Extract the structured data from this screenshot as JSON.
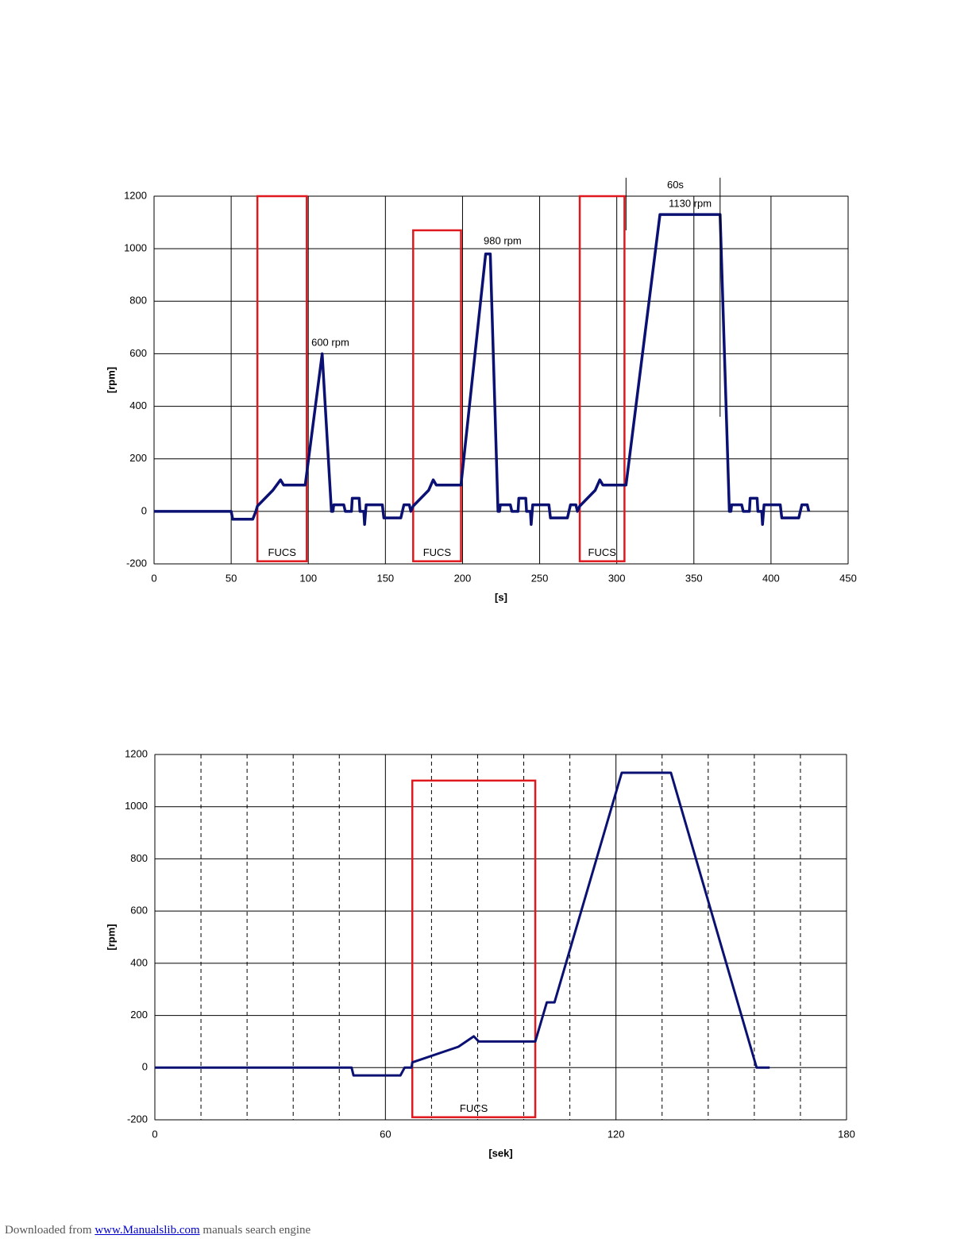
{
  "chart_data": [
    {
      "type": "line",
      "xlabel": "[s]",
      "ylabel": "[rpm]",
      "xlim": [
        0,
        450
      ],
      "xticks": [
        0,
        50,
        100,
        150,
        200,
        250,
        300,
        350,
        400,
        450
      ],
      "ylim": [
        -200,
        1200
      ],
      "yticks": [
        -200,
        0,
        200,
        400,
        600,
        800,
        1000,
        1200
      ],
      "grid": true,
      "color": "#0a1172",
      "x": [
        0,
        50,
        51,
        64,
        66,
        67,
        77,
        82,
        84,
        98,
        109,
        115,
        116,
        116.5,
        123,
        124,
        128,
        128.5,
        133,
        133.5,
        136,
        136.5,
        137.5,
        148,
        149,
        160,
        161,
        162,
        165.5,
        166.5,
        168,
        178,
        181,
        183,
        199,
        215,
        218,
        223,
        224,
        224.5,
        231,
        232,
        236,
        236.5,
        241,
        241.5,
        244,
        244.5,
        245.5,
        256,
        257,
        268,
        269,
        270,
        273.5,
        274.5,
        276,
        286,
        289,
        291,
        306,
        328,
        367,
        373,
        374,
        374.5,
        381,
        382,
        386,
        386.5,
        391,
        391.5,
        394,
        394.5,
        395.5,
        406,
        407,
        418,
        419,
        420,
        423.5,
        424.5
      ],
      "values": [
        0,
        0,
        -30,
        -30,
        0,
        20,
        80,
        120,
        100,
        100,
        600,
        0,
        0,
        25,
        25,
        0,
        0,
        50,
        50,
        0,
        0,
        -50,
        25,
        25,
        -25,
        -25,
        0,
        25,
        25,
        0,
        20,
        80,
        120,
        100,
        100,
        980,
        980,
        0,
        0,
        25,
        25,
        0,
        0,
        50,
        50,
        0,
        0,
        -50,
        25,
        25,
        -25,
        -25,
        0,
        25,
        25,
        0,
        20,
        80,
        120,
        100,
        100,
        1130,
        1130,
        0,
        0,
        25,
        25,
        0,
        0,
        50,
        50,
        0,
        0,
        -50,
        25,
        25,
        -25,
        -25,
        0,
        25,
        25,
        0
      ],
      "regions": [
        {
          "x": [
            67,
            99
          ],
          "y": [
            -190,
            1200
          ],
          "label": "FUCS"
        },
        {
          "x": [
            168,
            199
          ],
          "y": [
            -190,
            1070
          ],
          "label": "FUCS"
        },
        {
          "x": [
            276,
            305
          ],
          "y": [
            -190,
            1200
          ],
          "label": "FUCS"
        }
      ],
      "annotations": [
        {
          "text": "600 rpm",
          "x": 102,
          "y": 641
        },
        {
          "text": "980 rpm",
          "x": 213.7,
          "y": 1028
        },
        {
          "text": "1130 rpm",
          "x": 333.7,
          "y": 1170
        },
        {
          "text": "60s",
          "x": 332.6,
          "y": 1240,
          "span": [
            306,
            367
          ]
        }
      ]
    },
    {
      "type": "line",
      "xlabel": "[sek]",
      "ylabel": "[rpm]",
      "xlim": [
        0,
        180
      ],
      "xticks": [
        0,
        60,
        120,
        180
      ],
      "xminor": [
        12,
        24,
        36,
        48,
        72,
        84,
        96,
        108,
        132,
        144,
        156,
        168
      ],
      "ylim": [
        -200,
        1200
      ],
      "yticks": [
        -200,
        0,
        200,
        400,
        600,
        800,
        1000,
        1200
      ],
      "grid": true,
      "color": "#0a1172",
      "x": [
        0,
        51.2,
        51.7,
        63.9,
        65,
        66.8,
        67,
        79,
        83,
        84.3,
        99,
        102,
        104,
        121.5,
        134.3,
        156.6,
        160
      ],
      "values": [
        0,
        0,
        -30,
        -30,
        0,
        0,
        20,
        80,
        120,
        100,
        100,
        250,
        250,
        1130,
        1130,
        0,
        0
      ],
      "regions": [
        {
          "x": [
            67,
            99
          ],
          "y": [
            -190,
            1100
          ],
          "label": "FUCS"
        }
      ]
    }
  ],
  "footer": {
    "prefix": "Downloaded from",
    "link": "www.Manualslib.com",
    "suffix": "manuals search engine"
  }
}
